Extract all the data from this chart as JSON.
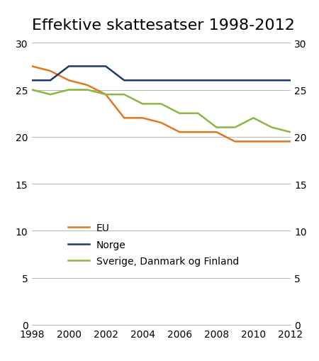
{
  "title": "Effektive skattesatser 1998-2012",
  "eu_years": [
    1998,
    1999,
    2000,
    2001,
    2002,
    2003,
    2004,
    2005,
    2006,
    2007,
    2008,
    2009,
    2010,
    2011,
    2012
  ],
  "eu_vals": [
    27.5,
    27.0,
    26.0,
    25.5,
    24.5,
    22.0,
    22.0,
    21.5,
    20.5,
    20.5,
    20.5,
    19.5,
    19.5,
    19.5,
    19.5
  ],
  "norge_years": [
    1998,
    1999,
    2000,
    2001,
    2002,
    2003,
    2004,
    2005,
    2006,
    2007,
    2008,
    2009,
    2010,
    2011,
    2012
  ],
  "norge_vals": [
    26.0,
    26.0,
    27.5,
    27.5,
    27.5,
    26.0,
    26.0,
    26.0,
    26.0,
    26.0,
    26.0,
    26.0,
    26.0,
    26.0,
    26.0
  ],
  "nordic_years": [
    1998,
    1999,
    2000,
    2001,
    2002,
    2003,
    2004,
    2005,
    2006,
    2007,
    2008,
    2009,
    2010,
    2011,
    2012
  ],
  "nordic_vals": [
    25.0,
    24.5,
    25.0,
    25.0,
    24.5,
    24.5,
    23.5,
    23.5,
    22.5,
    22.5,
    21.0,
    21.0,
    22.0,
    21.0,
    20.5
  ],
  "eu_color": "#E07820",
  "norge_color": "#1F3864",
  "nordic_color": "#8DB640",
  "ylim": [
    0,
    30
  ],
  "yticks": [
    0,
    5,
    10,
    15,
    20,
    25,
    30
  ],
  "xlim": [
    1998,
    2012
  ],
  "xticks": [
    1998,
    2000,
    2002,
    2004,
    2006,
    2008,
    2010,
    2012
  ],
  "legend_labels": [
    "EU",
    "Norge",
    "Sverige, Danmark og Finland"
  ],
  "bg_color": "#ffffff",
  "grid_color": "#aaaaaa",
  "line_width": 1.8,
  "title_fontsize": 16,
  "tick_fontsize": 10
}
